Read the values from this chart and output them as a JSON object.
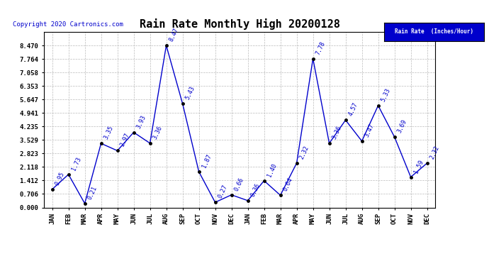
{
  "title": "Rain Rate Monthly High 20200128",
  "copyright": "Copyright 2020 Cartronics.com",
  "legend_label": "Rain Rate  (Inches/Hour)",
  "months": [
    "JAN",
    "FEB",
    "MAR",
    "APR",
    "MAY",
    "JUN",
    "JUL",
    "AUG",
    "SEP",
    "OCT",
    "NOV",
    "DEC",
    "JAN",
    "FEB",
    "MAR",
    "APR",
    "MAY",
    "JUN",
    "JUL",
    "AUG",
    "SEP",
    "OCT",
    "NOV",
    "DEC"
  ],
  "values": [
    0.95,
    1.73,
    0.21,
    3.35,
    2.97,
    3.93,
    3.36,
    8.47,
    5.43,
    1.87,
    0.27,
    0.66,
    0.36,
    1.4,
    0.64,
    2.32,
    7.78,
    3.36,
    4.57,
    3.47,
    5.33,
    3.69,
    1.59,
    2.32
  ],
  "ylim_min": 0.0,
  "ylim_max": 9.18,
  "yticks": [
    0.0,
    0.706,
    1.412,
    2.118,
    2.823,
    3.529,
    4.235,
    4.941,
    5.647,
    6.353,
    7.058,
    7.764,
    8.47
  ],
  "line_color": "#0000cc",
  "marker_color": "#000000",
  "bg_color": "#ffffff",
  "grid_color": "#bbbbbb",
  "title_fontsize": 11,
  "tick_fontsize": 6.5,
  "annotation_fontsize": 6.0,
  "legend_bg": "#0000cc",
  "legend_fg": "#ffffff",
  "copyright_color": "#0000cc",
  "copyright_fontsize": 6.5
}
